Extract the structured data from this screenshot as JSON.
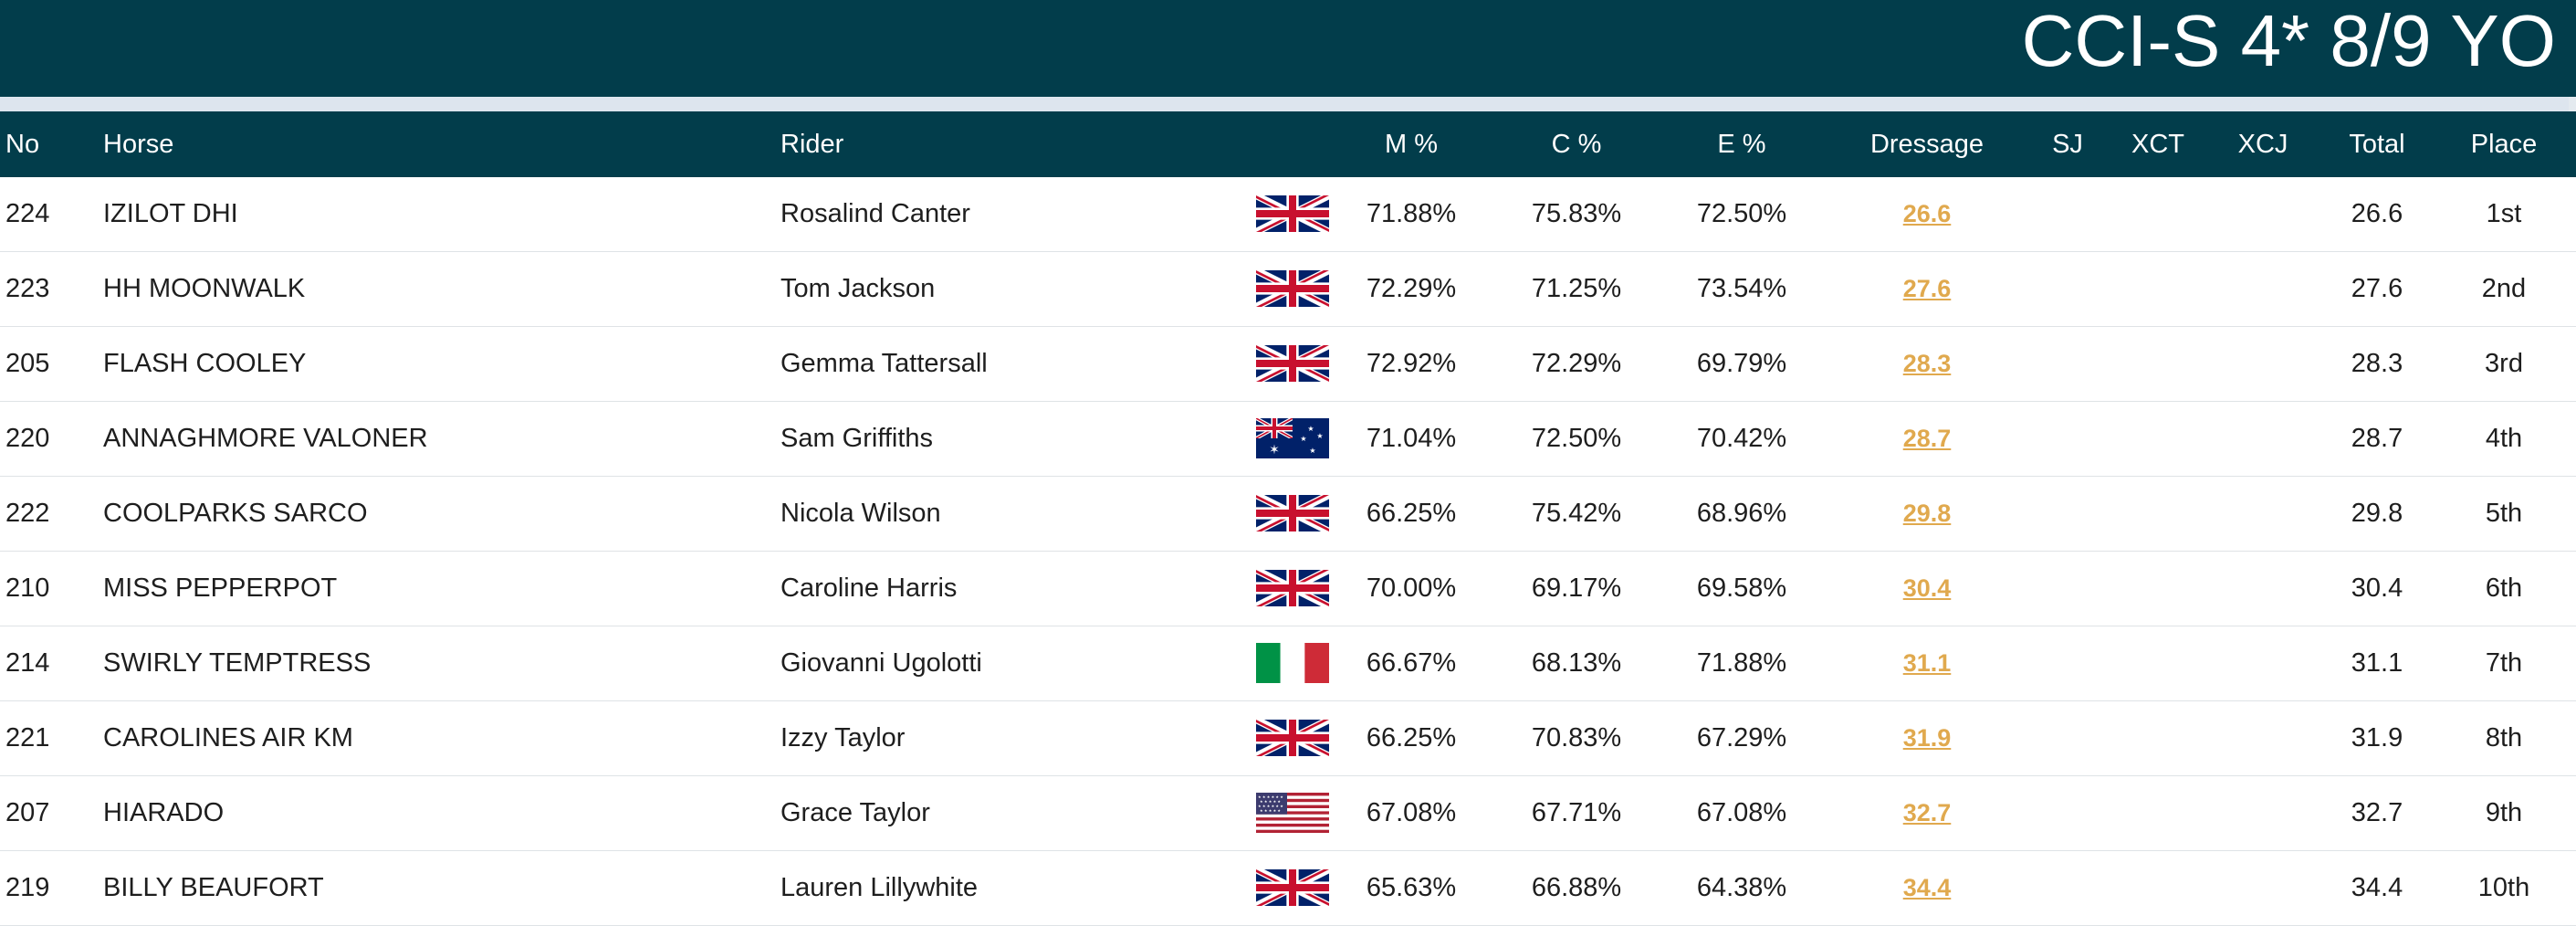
{
  "header": {
    "title": "CCI-S 4* 8/9 YO"
  },
  "columns": {
    "no": "No",
    "horse": "Horse",
    "rider": "Rider",
    "m": "M %",
    "c": "C %",
    "e": "E %",
    "dressage": "Dressage",
    "sj": "SJ",
    "xct": "XCT",
    "xcj": "XCJ",
    "total": "Total",
    "place": "Place"
  },
  "rows": [
    {
      "no": "224",
      "horse": "IZILOT DHI",
      "rider": "Rosalind Canter",
      "flag": "gb-flag-icon",
      "m": "71.88%",
      "c": "75.83%",
      "e": "72.50%",
      "dressage": "26.6",
      "total": "26.6",
      "place": "1st"
    },
    {
      "no": "223",
      "horse": "HH MOONWALK",
      "rider": "Tom Jackson",
      "flag": "gb-flag-icon",
      "m": "72.29%",
      "c": "71.25%",
      "e": "73.54%",
      "dressage": "27.6",
      "total": "27.6",
      "place": "2nd"
    },
    {
      "no": "205",
      "horse": "FLASH COOLEY",
      "rider": "Gemma Tattersall",
      "flag": "gb-flag-icon",
      "m": "72.92%",
      "c": "72.29%",
      "e": "69.79%",
      "dressage": "28.3",
      "total": "28.3",
      "place": "3rd"
    },
    {
      "no": "220",
      "horse": "ANNAGHMORE VALONER",
      "rider": "Sam Griffiths",
      "flag": "au-flag-icon",
      "m": "71.04%",
      "c": "72.50%",
      "e": "70.42%",
      "dressage": "28.7",
      "total": "28.7",
      "place": "4th"
    },
    {
      "no": "222",
      "horse": "COOLPARKS SARCO",
      "rider": "Nicola Wilson",
      "flag": "gb-flag-icon",
      "m": "66.25%",
      "c": "75.42%",
      "e": "68.96%",
      "dressage": "29.8",
      "total": "29.8",
      "place": "5th"
    },
    {
      "no": "210",
      "horse": "MISS PEPPERPOT",
      "rider": "Caroline Harris",
      "flag": "gb-flag-icon",
      "m": "70.00%",
      "c": "69.17%",
      "e": "69.58%",
      "dressage": "30.4",
      "total": "30.4",
      "place": "6th"
    },
    {
      "no": "214",
      "horse": "SWIRLY TEMPTRESS",
      "rider": "Giovanni Ugolotti",
      "flag": "it-flag-icon",
      "m": "66.67%",
      "c": "68.13%",
      "e": "71.88%",
      "dressage": "31.1",
      "total": "31.1",
      "place": "7th"
    },
    {
      "no": "221",
      "horse": "CAROLINES AIR KM",
      "rider": "Izzy Taylor",
      "flag": "gb-flag-icon",
      "m": "66.25%",
      "c": "70.83%",
      "e": "67.29%",
      "dressage": "31.9",
      "total": "31.9",
      "place": "8th"
    },
    {
      "no": "207",
      "horse": "HIARADO",
      "rider": "Grace Taylor",
      "flag": "us-flag-icon",
      "m": "67.08%",
      "c": "67.71%",
      "e": "67.08%",
      "dressage": "32.7",
      "total": "32.7",
      "place": "9th"
    },
    {
      "no": "219",
      "horse": "BILLY BEAUFORT",
      "rider": "Lauren Lillywhite",
      "flag": "gb-flag-icon",
      "m": "65.63%",
      "c": "66.88%",
      "e": "64.38%",
      "dressage": "34.4",
      "total": "34.4",
      "place": "10th"
    }
  ],
  "colors": {
    "header_bg": "#023d4b",
    "dressage_link": "#e0a94e",
    "row_divider": "#dfe3e6"
  }
}
